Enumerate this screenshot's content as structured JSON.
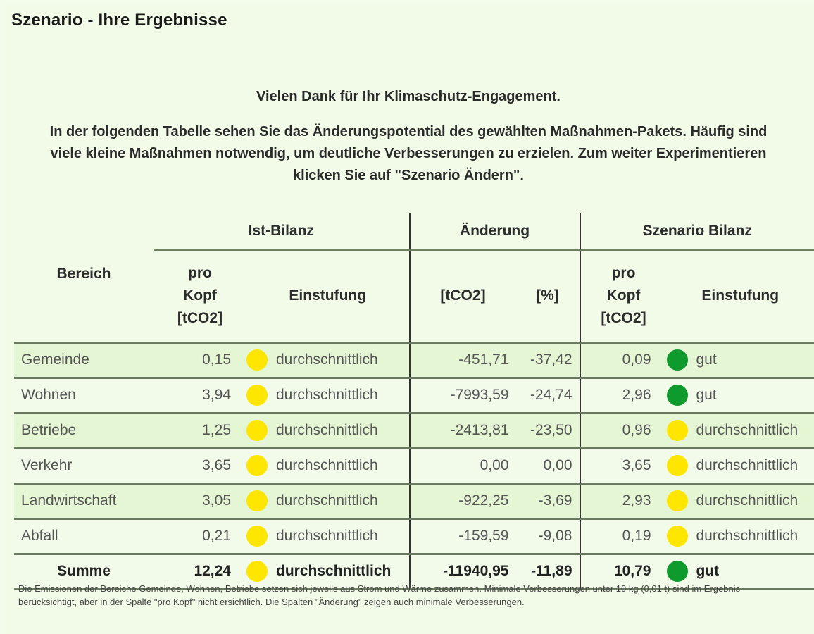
{
  "page": {
    "title": "Szenario - Ihre Ergebnisse",
    "thanks": "Vielen Dank für Ihr Klimaschutz-Engagement.",
    "description": "In der folgenden Tabelle sehen Sie das Änderungspotential des gewählten Maßnahmen-Pakets. Häufig sind viele kleine Maßnahmen notwendig, um deutliche Verbesserungen zu erzielen. Zum weiter Experimentieren klicken Sie auf \"Szenario Ändern\"."
  },
  "colors": {
    "good": "#0f9a2e",
    "average": "#ffe600",
    "background": "#f1fbe7",
    "row_alt": "#e5f6d4"
  },
  "table": {
    "groups": {
      "ist": "Ist-Bilanz",
      "change": "Änderung",
      "scenario": "Szenario Bilanz"
    },
    "columns": {
      "bereich": "Bereich",
      "pro_kopf_line1": "pro",
      "pro_kopf_line2": "Kopf",
      "pro_kopf_line3": "[tCO2]",
      "einstufung": "Einstufung",
      "tco2": "[tCO2]",
      "pct": "[%]"
    },
    "rows": [
      {
        "bereich": "Gemeinde",
        "ist_kopf": "0,15",
        "ist_rating": "durchschnittlich",
        "ist_level": "average",
        "delta_t": "-451,71",
        "delta_pct": "-37,42",
        "sz_kopf": "0,09",
        "sz_rating": "gut",
        "sz_level": "good"
      },
      {
        "bereich": "Wohnen",
        "ist_kopf": "3,94",
        "ist_rating": "durchschnittlich",
        "ist_level": "average",
        "delta_t": "-7993,59",
        "delta_pct": "-24,74",
        "sz_kopf": "2,96",
        "sz_rating": "gut",
        "sz_level": "good"
      },
      {
        "bereich": "Betriebe",
        "ist_kopf": "1,25",
        "ist_rating": "durchschnittlich",
        "ist_level": "average",
        "delta_t": "-2413,81",
        "delta_pct": "-23,50",
        "sz_kopf": "0,96",
        "sz_rating": "durchschnittlich",
        "sz_level": "average"
      },
      {
        "bereich": "Verkehr",
        "ist_kopf": "3,65",
        "ist_rating": "durchschnittlich",
        "ist_level": "average",
        "delta_t": "0,00",
        "delta_pct": "0,00",
        "sz_kopf": "3,65",
        "sz_rating": "durchschnittlich",
        "sz_level": "average"
      },
      {
        "bereich": "Landwirtschaft",
        "ist_kopf": "3,05",
        "ist_rating": "durchschnittlich",
        "ist_level": "average",
        "delta_t": "-922,25",
        "delta_pct": "-3,69",
        "sz_kopf": "2,93",
        "sz_rating": "durchschnittlich",
        "sz_level": "average"
      },
      {
        "bereich": "Abfall",
        "ist_kopf": "0,21",
        "ist_rating": "durchschnittlich",
        "ist_level": "average",
        "delta_t": "-159,59",
        "delta_pct": "-9,08",
        "sz_kopf": "0,19",
        "sz_rating": "durchschnittlich",
        "sz_level": "average"
      }
    ],
    "sum": {
      "bereich": "Summe",
      "ist_kopf": "12,24",
      "ist_rating": "durchschnittlich",
      "ist_level": "average",
      "delta_t": "-11940,95",
      "delta_pct": "-11,89",
      "sz_kopf": "10,79",
      "sz_rating": "gut",
      "sz_level": "good"
    }
  },
  "footnote": "Die Emissionen der Bereiche Gemeinde, Wohnen, Betriebe setzen sich jeweils aus Strom und Wärme zusammen. Minimale Verbesserungen unter 10 kg (0,01 t) sind im Ergebnis berücksichtigt, aber in der Spalte \"pro Kopf\" nicht ersichtlich. Die Spalten \"Änderung\" zeigen auch minimale Verbesserungen."
}
